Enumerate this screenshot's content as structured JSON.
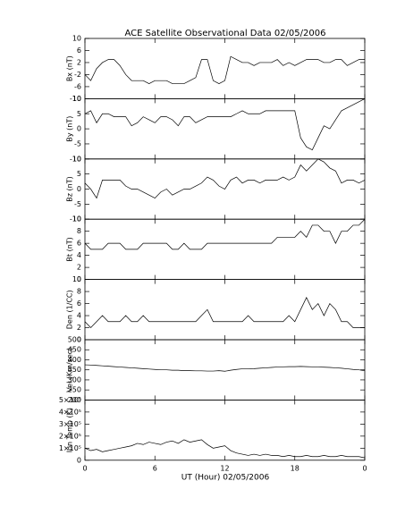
{
  "title": "ACE Satellite Observational Data   02/05/2006",
  "x_axis": {
    "label": "UT (Hour)   02/05/2006",
    "xlim": [
      0,
      24
    ],
    "xticks": [
      0,
      6,
      12,
      18,
      {
        "value": 24,
        "label": "0"
      }
    ]
  },
  "chart_data": [
    {
      "type": "line",
      "ylabel": "Bx (nT)",
      "ylim": [
        -10,
        10
      ],
      "yticks": [
        -10,
        -6,
        -2,
        2,
        6,
        10
      ],
      "x": [
        0,
        0.5,
        1,
        1.5,
        2,
        2.5,
        3,
        3.5,
        4,
        4.5,
        5,
        5.5,
        6,
        6.5,
        7,
        7.5,
        8,
        8.5,
        9,
        9.5,
        10,
        10.5,
        11,
        11.5,
        12,
        12.5,
        13,
        13.5,
        14,
        14.5,
        15,
        15.5,
        16,
        16.5,
        17,
        17.5,
        18,
        18.5,
        19,
        19.5,
        20,
        20.5,
        21,
        21.5,
        22,
        22.5,
        23,
        23.5,
        24
      ],
      "series": [
        {
          "color": "#000000",
          "values": [
            -2,
            -4,
            0,
            2,
            3,
            3,
            1,
            -2,
            -4,
            -4,
            -4,
            -5,
            -4,
            -4,
            -4,
            -5,
            -5,
            -5,
            -4,
            -3,
            3,
            3,
            -4,
            -5,
            -4,
            4,
            3,
            2,
            2,
            1,
            2,
            2,
            2,
            3,
            1,
            2,
            1,
            2,
            3,
            3,
            3,
            2,
            2,
            3,
            3,
            1,
            2,
            3,
            3
          ]
        }
      ]
    },
    {
      "type": "line",
      "ylabel": "By (nT)",
      "ylim": [
        -10,
        10
      ],
      "yticks": [
        -10,
        -5,
        0,
        5,
        10
      ],
      "x": [
        0,
        0.5,
        1,
        1.5,
        2,
        2.5,
        3,
        3.5,
        4,
        4.5,
        5,
        5.5,
        6,
        6.5,
        7,
        7.5,
        8,
        8.5,
        9,
        9.5,
        10,
        10.5,
        11,
        11.5,
        12,
        12.5,
        13,
        13.5,
        14,
        14.5,
        15,
        15.5,
        16,
        16.5,
        17,
        17.5,
        18,
        18.5,
        19,
        19.5,
        20,
        20.5,
        21,
        21.5,
        22,
        22.5,
        23,
        23.5,
        24
      ],
      "series": [
        {
          "color": "#000000",
          "values": [
            5,
            6,
            2,
            5,
            5,
            4,
            4,
            4,
            1,
            2,
            4,
            3,
            2,
            4,
            4,
            3,
            1,
            4,
            4,
            2,
            3,
            4,
            4,
            4,
            4,
            4,
            5,
            6,
            5,
            5,
            5,
            6,
            6,
            6,
            6,
            6,
            6,
            -3,
            -6,
            -7,
            -3,
            1,
            0,
            3,
            6,
            7,
            8,
            9,
            10
          ]
        }
      ]
    },
    {
      "type": "line",
      "ylabel": "Bz (nT)",
      "ylim": [
        -10,
        10
      ],
      "yticks": [
        -10,
        -5,
        0,
        5,
        10
      ],
      "x": [
        0,
        0.5,
        1,
        1.5,
        2,
        2.5,
        3,
        3.5,
        4,
        4.5,
        5,
        5.5,
        6,
        6.5,
        7,
        7.5,
        8,
        8.5,
        9,
        9.5,
        10,
        10.5,
        11,
        11.5,
        12,
        12.5,
        13,
        13.5,
        14,
        14.5,
        15,
        15.5,
        16,
        16.5,
        17,
        17.5,
        18,
        18.5,
        19,
        19.5,
        20,
        20.5,
        21,
        21.5,
        22,
        22.5,
        23,
        23.5,
        24
      ],
      "series": [
        {
          "color": "#000000",
          "values": [
            2,
            0,
            -3,
            3,
            3,
            3,
            3,
            1,
            0,
            0,
            -1,
            -2,
            -3,
            -1,
            0,
            -2,
            -1,
            0,
            0,
            1,
            2,
            4,
            3,
            1,
            0,
            3,
            4,
            2,
            3,
            3,
            2,
            3,
            3,
            3,
            4,
            3,
            4,
            8,
            6,
            8,
            10,
            9,
            7,
            6,
            2,
            3,
            3,
            2,
            3
          ]
        }
      ]
    },
    {
      "type": "line",
      "ylabel": "Bt (nT)",
      "ylim": [
        0,
        10
      ],
      "yticks": [
        0,
        2,
        4,
        6,
        8,
        10
      ],
      "x": [
        0,
        0.5,
        1,
        1.5,
        2,
        2.5,
        3,
        3.5,
        4,
        4.5,
        5,
        5.5,
        6,
        6.5,
        7,
        7.5,
        8,
        8.5,
        9,
        9.5,
        10,
        10.5,
        11,
        11.5,
        12,
        12.5,
        13,
        13.5,
        14,
        14.5,
        15,
        15.5,
        16,
        16.5,
        17,
        17.5,
        18,
        18.5,
        19,
        19.5,
        20,
        20.5,
        21,
        21.5,
        22,
        22.5,
        23,
        23.5,
        24
      ],
      "series": [
        {
          "color": "#000000",
          "values": [
            6,
            5,
            5,
            5,
            6,
            6,
            6,
            5,
            5,
            5,
            6,
            6,
            6,
            6,
            6,
            5,
            5,
            6,
            5,
            5,
            5,
            6,
            6,
            6,
            6,
            6,
            6,
            6,
            6,
            6,
            6,
            6,
            6,
            7,
            7,
            7,
            7,
            8,
            7,
            9,
            9,
            8,
            8,
            6,
            8,
            8,
            9,
            9,
            10
          ]
        }
      ]
    },
    {
      "type": "line",
      "ylabel": "Den (1/CC)",
      "ylim": [
        0,
        10
      ],
      "yticks": [
        0,
        2,
        4,
        6,
        8,
        10
      ],
      "x": [
        0,
        0.5,
        1,
        1.5,
        2,
        2.5,
        3,
        3.5,
        4,
        4.5,
        5,
        5.5,
        6,
        6.5,
        7,
        7.5,
        8,
        8.5,
        9,
        9.5,
        10,
        10.5,
        11,
        11.5,
        12,
        12.5,
        13,
        13.5,
        14,
        14.5,
        15,
        15.5,
        16,
        16.5,
        17,
        17.5,
        18,
        18.5,
        19,
        19.5,
        20,
        20.5,
        21,
        21.5,
        22,
        22.5,
        23,
        23.5,
        24
      ],
      "series": [
        {
          "color": "#000000",
          "values": [
            3,
            2,
            3,
            4,
            3,
            3,
            3,
            4,
            3,
            3,
            4,
            3,
            3,
            3,
            3,
            3,
            3,
            3,
            3,
            3,
            4,
            5,
            3,
            3,
            3,
            3,
            3,
            3,
            4,
            3,
            3,
            3,
            3,
            3,
            3,
            4,
            3,
            5,
            7,
            5,
            6,
            4,
            6,
            5,
            3,
            3,
            2,
            2,
            2
          ]
        }
      ]
    },
    {
      "type": "line",
      "ylabel": "Vel (Km/sec)",
      "ylim": [
        200,
        500
      ],
      "yticks": [
        200,
        250,
        300,
        350,
        400,
        450,
        500
      ],
      "x": [
        0,
        0.5,
        1,
        1.5,
        2,
        2.5,
        3,
        3.5,
        4,
        4.5,
        5,
        5.5,
        6,
        6.5,
        7,
        7.5,
        8,
        8.5,
        9,
        9.5,
        10,
        10.5,
        11,
        11.5,
        12,
        12.5,
        13,
        13.5,
        14,
        14.5,
        15,
        15.5,
        16,
        16.5,
        17,
        17.5,
        18,
        18.5,
        19,
        19.5,
        20,
        20.5,
        21,
        21.5,
        22,
        22.5,
        23,
        23.5,
        24
      ],
      "series": [
        {
          "color": "#000000",
          "values": [
            375,
            374,
            372,
            370,
            368,
            366,
            364,
            362,
            360,
            358,
            356,
            354,
            352,
            350,
            350,
            348,
            348,
            346,
            346,
            345,
            345,
            344,
            344,
            346,
            343,
            348,
            352,
            355,
            355,
            356,
            358,
            360,
            362,
            364,
            365,
            366,
            366,
            367,
            366,
            365,
            364,
            363,
            362,
            360,
            358,
            355,
            352,
            350,
            345
          ]
        }
      ]
    },
    {
      "type": "line",
      "ylabel": "Ion Temp (K)",
      "ylim": [
        0,
        500000
      ],
      "yticks": [
        0,
        {
          "value": 100000,
          "label": "1×10⁵"
        },
        {
          "value": 200000,
          "label": "2×10⁵"
        },
        {
          "value": 300000,
          "label": "3×10⁵"
        },
        {
          "value": 400000,
          "label": "4×10⁵"
        },
        {
          "value": 500000,
          "label": "5×10⁵"
        }
      ],
      "x": [
        0,
        0.5,
        1,
        1.5,
        2,
        2.5,
        3,
        3.5,
        4,
        4.5,
        5,
        5.5,
        6,
        6.5,
        7,
        7.5,
        8,
        8.5,
        9,
        9.5,
        10,
        10.5,
        11,
        11.5,
        12,
        12.5,
        13,
        13.5,
        14,
        14.5,
        15,
        15.5,
        16,
        16.5,
        17,
        17.5,
        18,
        18.5,
        19,
        19.5,
        20,
        20.5,
        21,
        21.5,
        22,
        22.5,
        23,
        23.5,
        24
      ],
      "series": [
        {
          "color": "#000000",
          "values": [
            100000,
            80000,
            90000,
            70000,
            80000,
            90000,
            100000,
            110000,
            120000,
            140000,
            130000,
            150000,
            140000,
            130000,
            150000,
            160000,
            140000,
            170000,
            150000,
            160000,
            170000,
            130000,
            100000,
            110000,
            120000,
            80000,
            60000,
            50000,
            40000,
            50000,
            40000,
            50000,
            40000,
            40000,
            30000,
            40000,
            30000,
            30000,
            40000,
            30000,
            30000,
            40000,
            30000,
            30000,
            40000,
            30000,
            30000,
            30000,
            20000
          ]
        }
      ]
    }
  ]
}
